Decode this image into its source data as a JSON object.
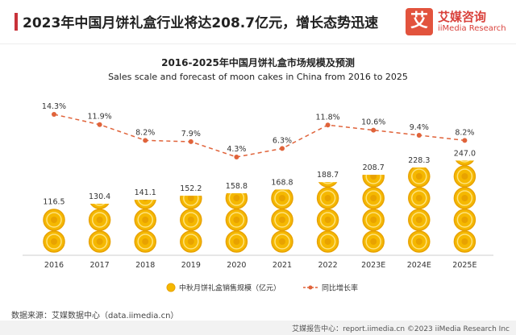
{
  "header": {
    "title": "2023年中国月饼礼盒行业将达208.7亿元，增长态势迅速",
    "logo_mark": "艾",
    "logo_cn": "艾媒咨询",
    "logo_en": "iiMedia Research"
  },
  "chart_data": {
    "type": "bar",
    "title": "2016-2025年中国月饼礼盒市场规模及预测",
    "subtitle": "Sales scale and forecast of moon cakes in China from 2016 to 2025",
    "categories": [
      "2016",
      "2017",
      "2018",
      "2019",
      "2020",
      "2021",
      "2022",
      "2023E",
      "2024E",
      "2025E"
    ],
    "series": [
      {
        "name": "中秋月饼礼盒销售规模（亿元）",
        "type": "bar",
        "values": [
          116.5,
          130.4,
          141.1,
          152.2,
          158.8,
          168.8,
          188.7,
          208.7,
          228.3,
          247.0
        ],
        "labels": [
          "116.5",
          "130.4",
          "141.1",
          "152.2",
          "158.8",
          "168.8",
          "188.7",
          "208.7",
          "228.3",
          "247.0"
        ]
      },
      {
        "name": "同比增长率",
        "type": "line",
        "values": [
          14.3,
          11.9,
          8.2,
          7.9,
          4.3,
          6.3,
          11.8,
          10.6,
          9.4,
          8.2
        ],
        "labels": [
          "14.3%",
          "11.9%",
          "8.2%",
          "7.9%",
          "4.3%",
          "6.3%",
          "11.8%",
          "10.6%",
          "9.4%",
          "8.2%"
        ]
      }
    ],
    "colors": {
      "bar": "#f5b800",
      "bar_dark": "#e8a200",
      "line": "#e0633a"
    },
    "legend": "bottom-center",
    "grid": false
  },
  "source": "数据来源：艾媒数据中心（data.iimedia.cn）",
  "footer": "艾媒报告中心：report.iimedia.cn ©2023  iiMedia Research  Inc"
}
